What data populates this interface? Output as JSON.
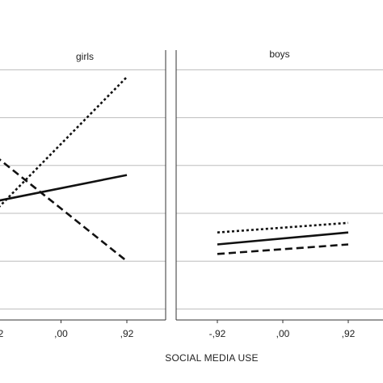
{
  "chart_data": {
    "type": "line",
    "xlabel": "SOCIAL MEDIA USE",
    "x": [
      -0.92,
      0.0,
      0.92
    ],
    "x_tick_labels": [
      "-,92",
      ",00",
      ",92"
    ],
    "ylim": [
      0,
      5
    ],
    "y_gridlines": [
      0.25,
      1.25,
      2.25,
      3.25,
      4.25,
      5.25
    ],
    "grid": true,
    "panels": [
      {
        "title": "girls",
        "series": [
          {
            "style": "dotted",
            "x": [
              -0.92,
              0.92
            ],
            "y": [
              2.3,
              5.1
            ]
          },
          {
            "style": "solid",
            "x": [
              -0.92,
              0.92
            ],
            "y": [
              2.5,
              3.05
            ]
          },
          {
            "style": "dashed",
            "x": [
              -0.92,
              0.92
            ],
            "y": [
              3.45,
              1.25
            ]
          }
        ]
      },
      {
        "title": "boys",
        "series": [
          {
            "style": "dotted",
            "x": [
              -0.92,
              0.92
            ],
            "y": [
              1.85,
              2.05
            ]
          },
          {
            "style": "solid",
            "x": [
              -0.92,
              0.92
            ],
            "y": [
              1.6,
              1.85
            ]
          },
          {
            "style": "dashed",
            "x": [
              -0.92,
              0.92
            ],
            "y": [
              1.4,
              1.6
            ]
          }
        ]
      }
    ]
  },
  "colors": {
    "line": "#111111",
    "grid": "#bdbdbd",
    "frame": "#333333"
  }
}
